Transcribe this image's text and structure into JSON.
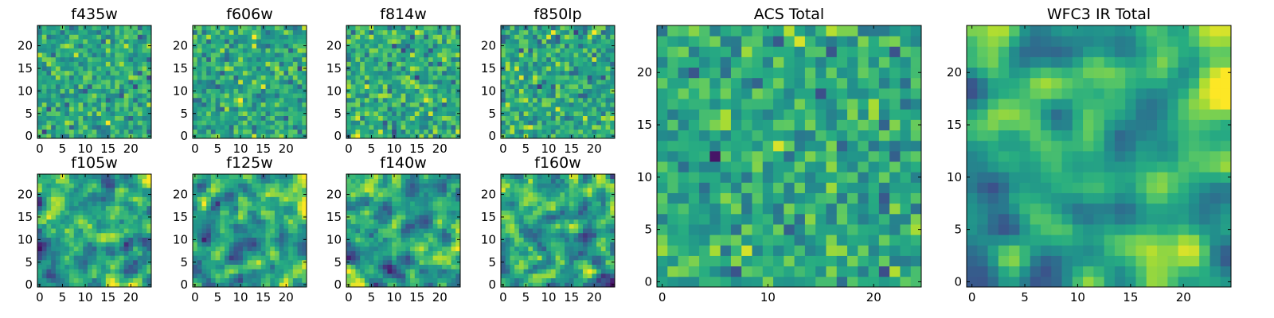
{
  "colormap": "viridis",
  "chart_data": [
    {
      "type": "heatmap",
      "title": "f435w",
      "grid": [
        25,
        25
      ],
      "xlim": [
        -0.5,
        24.5
      ],
      "ylim": [
        -0.5,
        24.5
      ],
      "xticks": [
        0,
        5,
        10,
        15,
        20
      ],
      "yticks": [
        0,
        5,
        10,
        15,
        20
      ],
      "seed": 435,
      "smoothness": 0,
      "mean": 0.6,
      "spread": 0.13
    },
    {
      "type": "heatmap",
      "title": "f606w",
      "grid": [
        25,
        25
      ],
      "xlim": [
        -0.5,
        24.5
      ],
      "ylim": [
        -0.5,
        24.5
      ],
      "xticks": [
        0,
        5,
        10,
        15,
        20
      ],
      "yticks": [
        0,
        5,
        10,
        15,
        20
      ],
      "seed": 606,
      "smoothness": 0,
      "mean": 0.6,
      "spread": 0.13
    },
    {
      "type": "heatmap",
      "title": "f814w",
      "grid": [
        25,
        25
      ],
      "xlim": [
        -0.5,
        24.5
      ],
      "ylim": [
        -0.5,
        24.5
      ],
      "xticks": [
        0,
        5,
        10,
        15,
        20
      ],
      "yticks": [
        0,
        5,
        10,
        15,
        20
      ],
      "seed": 814,
      "smoothness": 0,
      "mean": 0.62,
      "spread": 0.14
    },
    {
      "type": "heatmap",
      "title": "f850lp",
      "grid": [
        25,
        25
      ],
      "xlim": [
        -0.5,
        24.5
      ],
      "ylim": [
        -0.5,
        24.5
      ],
      "xticks": [
        0,
        5,
        10,
        15,
        20
      ],
      "yticks": [
        0,
        5,
        10,
        15,
        20
      ],
      "seed": 850,
      "smoothness": 0,
      "mean": 0.6,
      "spread": 0.14
    },
    {
      "type": "heatmap",
      "title": "f105w",
      "grid": [
        25,
        25
      ],
      "xlim": [
        -0.5,
        24.5
      ],
      "ylim": [
        -0.5,
        24.5
      ],
      "xticks": [
        0,
        5,
        10,
        15,
        20
      ],
      "yticks": [
        0,
        5,
        10,
        15,
        20
      ],
      "seed": 105,
      "smoothness": 1,
      "mean": 0.58,
      "spread": 0.16
    },
    {
      "type": "heatmap",
      "title": "f125w",
      "grid": [
        25,
        25
      ],
      "xlim": [
        -0.5,
        24.5
      ],
      "ylim": [
        -0.5,
        24.5
      ],
      "xticks": [
        0,
        5,
        10,
        15,
        20
      ],
      "yticks": [
        0,
        5,
        10,
        15,
        20
      ],
      "seed": 125,
      "smoothness": 1,
      "mean": 0.58,
      "spread": 0.16
    },
    {
      "type": "heatmap",
      "title": "f140w",
      "grid": [
        25,
        25
      ],
      "xlim": [
        -0.5,
        24.5
      ],
      "ylim": [
        -0.5,
        24.5
      ],
      "xticks": [
        0,
        5,
        10,
        15,
        20
      ],
      "yticks": [
        0,
        5,
        10,
        15,
        20
      ],
      "seed": 140,
      "smoothness": 1,
      "mean": 0.57,
      "spread": 0.16
    },
    {
      "type": "heatmap",
      "title": "f160w",
      "grid": [
        25,
        25
      ],
      "xlim": [
        -0.5,
        24.5
      ],
      "ylim": [
        -0.5,
        24.5
      ],
      "xticks": [
        0,
        5,
        10,
        15,
        20
      ],
      "yticks": [
        0,
        5,
        10,
        15,
        20
      ],
      "seed": 160,
      "smoothness": 1,
      "mean": 0.58,
      "spread": 0.16
    },
    {
      "type": "heatmap",
      "title": "ACS Total",
      "grid": [
        25,
        25
      ],
      "xlim": [
        -0.5,
        24.5
      ],
      "ylim": [
        -0.5,
        24.5
      ],
      "xticks": [
        0,
        10,
        20
      ],
      "yticks": [
        0,
        5,
        10,
        15,
        20
      ],
      "seed": 901,
      "smoothness": 0,
      "mean": 0.6,
      "spread": 0.13
    },
    {
      "type": "heatmap",
      "title": "WFC3 IR Total",
      "grid": [
        25,
        25
      ],
      "xlim": [
        -0.5,
        24.5
      ],
      "ylim": [
        -0.5,
        24.5
      ],
      "xticks": [
        0,
        5,
        10,
        15,
        20
      ],
      "yticks": [
        0,
        5,
        10,
        15,
        20
      ],
      "seed": 902,
      "smoothness": 2,
      "mean": 0.6,
      "spread": 0.15
    }
  ]
}
